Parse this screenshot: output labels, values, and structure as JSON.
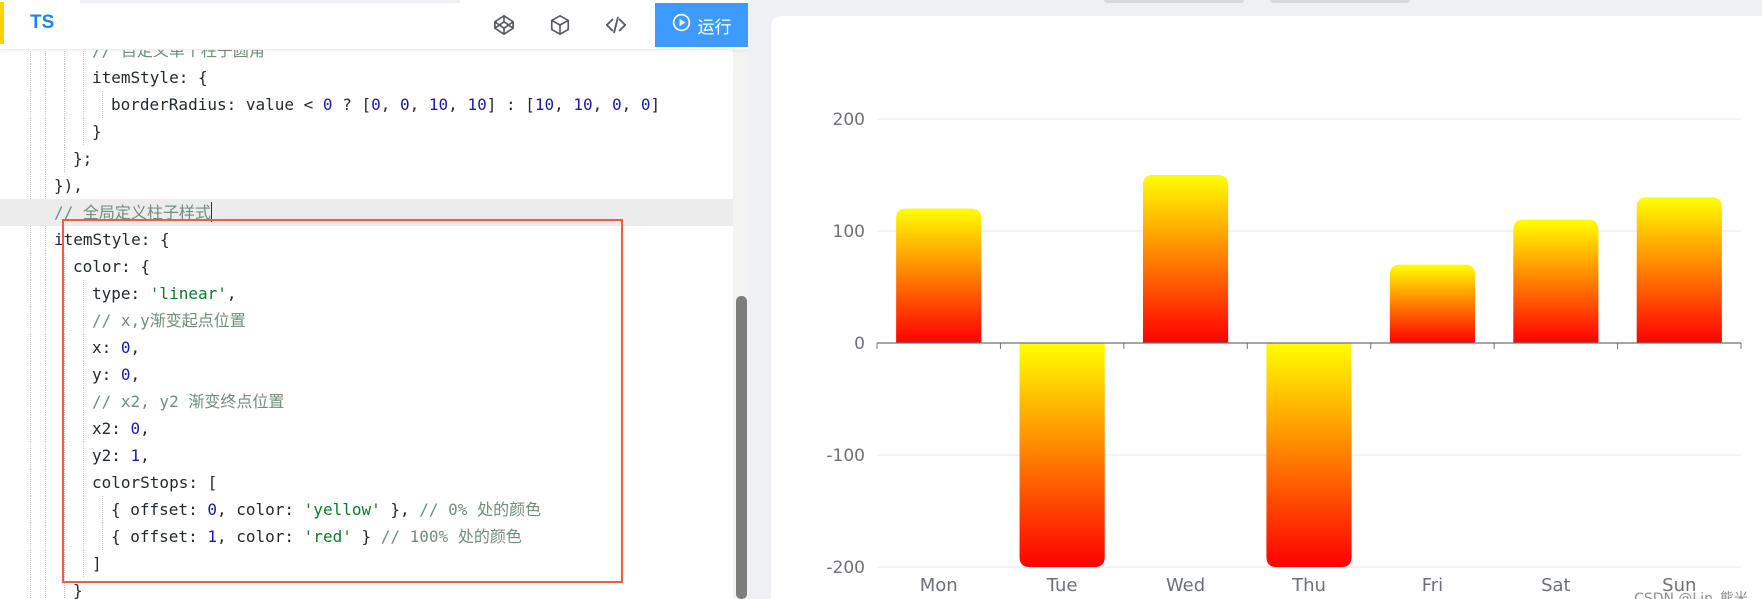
{
  "toolbar": {
    "language_tab": "TS",
    "icons": [
      "codepen-icon",
      "cube-icon",
      "code-icon"
    ],
    "run_label": "运行",
    "run_icon": "play-circle-icon",
    "accent_color": "#3d9bff"
  },
  "editor": {
    "lines": [
      {
        "indent": 3,
        "segments": [
          {
            "t": "// 自定义单个柱子圆角",
            "c": "c"
          }
        ]
      },
      {
        "indent": 3,
        "segments": [
          {
            "t": "itemStyle: {",
            "c": "k"
          }
        ]
      },
      {
        "indent": 4,
        "segments": [
          {
            "t": "borderRadius: value < ",
            "c": "k"
          },
          {
            "t": "0",
            "c": "n"
          },
          {
            "t": " ? [",
            "c": "k"
          },
          {
            "t": "0",
            "c": "n"
          },
          {
            "t": ", ",
            "c": "k"
          },
          {
            "t": "0",
            "c": "n"
          },
          {
            "t": ", ",
            "c": "k"
          },
          {
            "t": "10",
            "c": "n"
          },
          {
            "t": ", ",
            "c": "k"
          },
          {
            "t": "10",
            "c": "n"
          },
          {
            "t": "] : [",
            "c": "k"
          },
          {
            "t": "10",
            "c": "n"
          },
          {
            "t": ", ",
            "c": "k"
          },
          {
            "t": "10",
            "c": "n"
          },
          {
            "t": ", ",
            "c": "k"
          },
          {
            "t": "0",
            "c": "n"
          },
          {
            "t": ", ",
            "c": "k"
          },
          {
            "t": "0",
            "c": "n"
          },
          {
            "t": "]",
            "c": "k"
          }
        ]
      },
      {
        "indent": 3,
        "segments": [
          {
            "t": "}",
            "c": "k"
          }
        ]
      },
      {
        "indent": 2,
        "segments": [
          {
            "t": "};",
            "c": "k"
          }
        ]
      },
      {
        "indent": 1,
        "segments": [
          {
            "t": "}),",
            "c": "k"
          }
        ]
      },
      {
        "indent": 1,
        "active": true,
        "cursor": true,
        "segments": [
          {
            "t": "// 全局定义柱子样式",
            "c": "c"
          }
        ]
      },
      {
        "indent": 1,
        "segments": [
          {
            "t": "itemStyle: {",
            "c": "k"
          }
        ]
      },
      {
        "indent": 2,
        "segments": [
          {
            "t": "color: {",
            "c": "k"
          }
        ]
      },
      {
        "indent": 3,
        "segments": [
          {
            "t": "type: ",
            "c": "k"
          },
          {
            "t": "'linear'",
            "c": "s"
          },
          {
            "t": ",",
            "c": "k"
          }
        ]
      },
      {
        "indent": 3,
        "segments": [
          {
            "t": "// x,y渐变起点位置",
            "c": "c"
          }
        ]
      },
      {
        "indent": 3,
        "segments": [
          {
            "t": "x: ",
            "c": "k"
          },
          {
            "t": "0",
            "c": "n"
          },
          {
            "t": ",",
            "c": "k"
          }
        ]
      },
      {
        "indent": 3,
        "segments": [
          {
            "t": "y: ",
            "c": "k"
          },
          {
            "t": "0",
            "c": "n"
          },
          {
            "t": ",",
            "c": "k"
          }
        ]
      },
      {
        "indent": 3,
        "segments": [
          {
            "t": "// x2, y2 渐变终点位置",
            "c": "c"
          }
        ]
      },
      {
        "indent": 3,
        "segments": [
          {
            "t": "x2: ",
            "c": "k"
          },
          {
            "t": "0",
            "c": "n"
          },
          {
            "t": ",",
            "c": "k"
          }
        ]
      },
      {
        "indent": 3,
        "segments": [
          {
            "t": "y2: ",
            "c": "k"
          },
          {
            "t": "1",
            "c": "n"
          },
          {
            "t": ",",
            "c": "k"
          }
        ]
      },
      {
        "indent": 3,
        "segments": [
          {
            "t": "colorStops: [",
            "c": "k"
          }
        ]
      },
      {
        "indent": 4,
        "segments": [
          {
            "t": "{ offset: ",
            "c": "k"
          },
          {
            "t": "0",
            "c": "n"
          },
          {
            "t": ", color: ",
            "c": "k"
          },
          {
            "t": "'yellow'",
            "c": "s"
          },
          {
            "t": " }, ",
            "c": "k"
          },
          {
            "t": "// 0% 处的颜色",
            "c": "c"
          }
        ]
      },
      {
        "indent": 4,
        "segments": [
          {
            "t": "{ offset: ",
            "c": "k"
          },
          {
            "t": "1",
            "c": "n"
          },
          {
            "t": ", color: ",
            "c": "k"
          },
          {
            "t": "'red'",
            "c": "s"
          },
          {
            "t": " } ",
            "c": "k"
          },
          {
            "t": "// 100% 处的颜色",
            "c": "c"
          }
        ]
      },
      {
        "indent": 3,
        "segments": [
          {
            "t": "]",
            "c": "k"
          }
        ]
      },
      {
        "indent": 2,
        "segments": [
          {
            "t": "}",
            "c": "k"
          }
        ]
      }
    ],
    "colors": {
      "keyword": "#24292e",
      "number": "#1a1aa6",
      "string": "#0b7a2a",
      "comment": "#6e8f7b",
      "highlight_box": "#f05a46"
    }
  },
  "chart_data": {
    "type": "bar",
    "categories": [
      "Mon",
      "Tue",
      "Wed",
      "Thu",
      "Fri",
      "Sat",
      "Sun"
    ],
    "values": [
      120,
      -200,
      150,
      -200,
      70,
      110,
      130
    ],
    "ylim": [
      -200,
      200
    ],
    "yticks": [
      -200,
      -100,
      0,
      100,
      200
    ],
    "grid": true,
    "gradient": {
      "start": "yellow",
      "end": "red"
    },
    "border_radius_positive": [
      10,
      10,
      0,
      0
    ],
    "border_radius_negative": [
      0,
      0,
      10,
      10
    ],
    "title": "",
    "xlabel": "",
    "ylabel": ""
  },
  "watermark": "CSDN @Lin_熊米"
}
